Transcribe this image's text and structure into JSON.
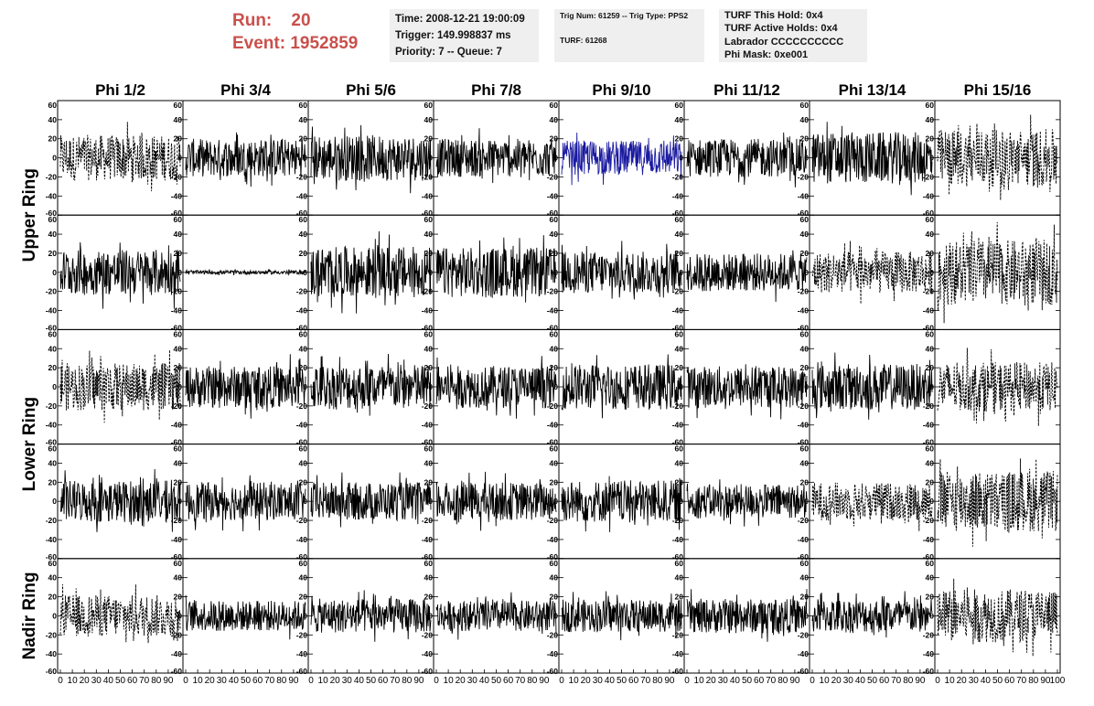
{
  "header": {
    "run_label": "Run:",
    "run_value": "20",
    "event_label": "Event:",
    "event_value": "1952859"
  },
  "info": {
    "time": "Time: 2008-12-21 19:00:09",
    "trigger": "Trigger: 149.998837 ms",
    "priority": "Priority: 7 -- Queue: 7",
    "trig_num": "Trig Num: 61259 -- Trig Type: PPS2",
    "turf": "TURF: 61268",
    "turf_hold": "TURF This Hold: 0x4",
    "turf_active": "TURF Active Holds: 0x4",
    "labrador": "Labrador CCCCCCCCCC",
    "phi_mask": "Phi Mask: 0xe001"
  },
  "chart_data": {
    "type": "line",
    "columns": [
      "Phi 1/2",
      "Phi 3/4",
      "Phi 5/6",
      "Phi 7/8",
      "Phi 9/10",
      "Phi 11/12",
      "Phi 13/14",
      "Phi 15/16"
    ],
    "ring_labels": [
      "Upper Ring",
      "Lower Ring",
      "Nadir Ring"
    ],
    "ylim": [
      -60,
      60
    ],
    "xlim": [
      0,
      100
    ],
    "y_ticks": [
      "60",
      "40",
      "20",
      "0",
      "-20",
      "-40",
      "-60"
    ],
    "x_ticks": [
      "0",
      "10",
      "20",
      "30",
      "40",
      "50",
      "60",
      "70",
      "80",
      "90",
      "100"
    ],
    "colors": {
      "normal": "#000000",
      "highlight": "#1a1aa0"
    },
    "rows": [
      {
        "ring": "Upper Ring",
        "panels": [
          {
            "style": "dashed",
            "amp": 24
          },
          {
            "style": "solid",
            "amp": 20
          },
          {
            "style": "solid",
            "amp": 24
          },
          {
            "style": "solid",
            "amp": 20
          },
          {
            "style": "highlight",
            "amp": 18
          },
          {
            "style": "solid",
            "amp": 20
          },
          {
            "style": "solid",
            "amp": 27
          },
          {
            "style": "dashed",
            "amp": 30
          }
        ]
      },
      {
        "ring": "Upper Ring",
        "panels": [
          {
            "style": "solid",
            "amp": 24
          },
          {
            "style": "solid",
            "amp": 2
          },
          {
            "style": "solid",
            "amp": 27
          },
          {
            "style": "solid",
            "amp": 26
          },
          {
            "style": "solid",
            "amp": 22
          },
          {
            "style": "solid",
            "amp": 20
          },
          {
            "style": "dashed",
            "amp": 22
          },
          {
            "style": "dashed",
            "amp": 34
          }
        ]
      },
      {
        "ring": "Lower Ring",
        "panels": [
          {
            "style": "dashed",
            "amp": 25
          },
          {
            "style": "solid",
            "amp": 22
          },
          {
            "style": "solid",
            "amp": 24
          },
          {
            "style": "solid",
            "amp": 22
          },
          {
            "style": "solid",
            "amp": 24
          },
          {
            "style": "solid",
            "amp": 22
          },
          {
            "style": "solid",
            "amp": 24
          },
          {
            "style": "dashed",
            "amp": 26
          }
        ]
      },
      {
        "ring": "Lower Ring",
        "panels": [
          {
            "style": "solid",
            "amp": 22
          },
          {
            "style": "solid",
            "amp": 20
          },
          {
            "style": "solid",
            "amp": 20
          },
          {
            "style": "solid",
            "amp": 20
          },
          {
            "style": "solid",
            "amp": 22
          },
          {
            "style": "solid",
            "amp": 18
          },
          {
            "style": "dashed",
            "amp": 20
          },
          {
            "style": "dashed",
            "amp": 32
          }
        ]
      },
      {
        "ring": "Nadir Ring",
        "panels": [
          {
            "style": "dashed",
            "amp": 22
          },
          {
            "style": "solid",
            "amp": 16
          },
          {
            "style": "solid",
            "amp": 18
          },
          {
            "style": "solid",
            "amp": 16
          },
          {
            "style": "solid",
            "amp": 17
          },
          {
            "style": "solid",
            "amp": 18
          },
          {
            "style": "solid",
            "amp": 18
          },
          {
            "style": "dashed",
            "amp": 28
          }
        ]
      }
    ]
  }
}
